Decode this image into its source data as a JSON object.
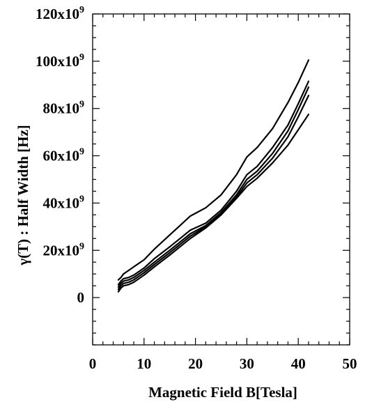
{
  "chart_data": {
    "type": "line",
    "title": "",
    "xlabel": "Magnetic Field B[Tesla]",
    "ylabel": "γ(T) :  Half Width [Hz]",
    "xlim": [
      0,
      50
    ],
    "ylim": [
      -20000000000,
      120000000000
    ],
    "grid": false,
    "legend": "none",
    "x_ticks": [
      0,
      10,
      20,
      30,
      40,
      50
    ],
    "x_tick_labels": [
      "0",
      "10",
      "20",
      "30",
      "40",
      "50"
    ],
    "y_ticks": [
      0,
      20000000000,
      40000000000,
      60000000000,
      80000000000,
      100000000000,
      120000000000
    ],
    "y_tick_labels": [
      {
        "mantissa": "0",
        "exp": ""
      },
      {
        "mantissa": "20x10",
        "exp": "9"
      },
      {
        "mantissa": "40x10",
        "exp": "9"
      },
      {
        "mantissa": "60x10",
        "exp": "9"
      },
      {
        "mantissa": "80x10",
        "exp": "9"
      },
      {
        "mantissa": "100x10",
        "exp": "9"
      },
      {
        "mantissa": "120x10",
        "exp": "9"
      }
    ],
    "series": [
      {
        "x": [
          5,
          5.5,
          6,
          7,
          8,
          10,
          12,
          15,
          17,
          19,
          22,
          25,
          28,
          30,
          32,
          35,
          38,
          40,
          42
        ],
        "y": [
          7500000000,
          8500000000,
          10000000000,
          11500000000,
          13000000000,
          16000000000,
          20500000000,
          26500000000,
          30500000000,
          34500000000,
          38000000000,
          43500000000,
          52000000000,
          59500000000,
          63500000000,
          71500000000,
          82500000000,
          91000000000,
          100500000000
        ]
      },
      {
        "x": [
          5,
          5.5,
          6,
          7,
          8,
          10,
          12,
          15,
          17,
          19,
          22,
          25,
          28,
          30,
          32,
          35,
          38,
          40,
          42
        ],
        "y": [
          5500000000,
          7000000000,
          8000000000,
          8500000000,
          9500000000,
          12500000000,
          16500000000,
          21500000000,
          25000000000,
          28500000000,
          31500000000,
          37000000000,
          45000000000,
          52000000000,
          55500000000,
          63500000000,
          73000000000,
          82000000000,
          91500000000
        ]
      },
      {
        "x": [
          5,
          5.5,
          6,
          7,
          8,
          10,
          12,
          15,
          17,
          19,
          22,
          25,
          28,
          30,
          32,
          35,
          38,
          40,
          42
        ],
        "y": [
          4500000000,
          6000000000,
          7000000000,
          7500000000,
          8500000000,
          11500000000,
          15000000000,
          20000000000,
          23500000000,
          27000000000,
          30500000000,
          36000000000,
          43500000000,
          50000000000,
          53500000000,
          61000000000,
          70500000000,
          79500000000,
          89000000000
        ]
      },
      {
        "x": [
          5,
          5.5,
          6,
          7,
          8,
          10,
          12,
          15,
          17,
          19,
          22,
          25,
          28,
          30,
          32,
          35,
          38,
          40,
          42
        ],
        "y": [
          3500000000,
          5000000000,
          6000000000,
          6500000000,
          7500000000,
          10500000000,
          14000000000,
          19000000000,
          22500000000,
          26000000000,
          30000000000,
          35500000000,
          42500000000,
          48500000000,
          52000000000,
          59000000000,
          68000000000,
          76500000000,
          85500000000
        ]
      },
      {
        "x": [
          5,
          5.5,
          6,
          7,
          8,
          10,
          12,
          15,
          17,
          19,
          22,
          25,
          28,
          30,
          32,
          35,
          38,
          40,
          42
        ],
        "y": [
          2500000000,
          4000000000,
          5000000000,
          5500000000,
          6500000000,
          9500000000,
          13000000000,
          18000000000,
          21500000000,
          25000000000,
          29500000000,
          35000000000,
          42000000000,
          47000000000,
          50500000000,
          57000000000,
          64500000000,
          71000000000,
          77500000000
        ]
      }
    ]
  }
}
